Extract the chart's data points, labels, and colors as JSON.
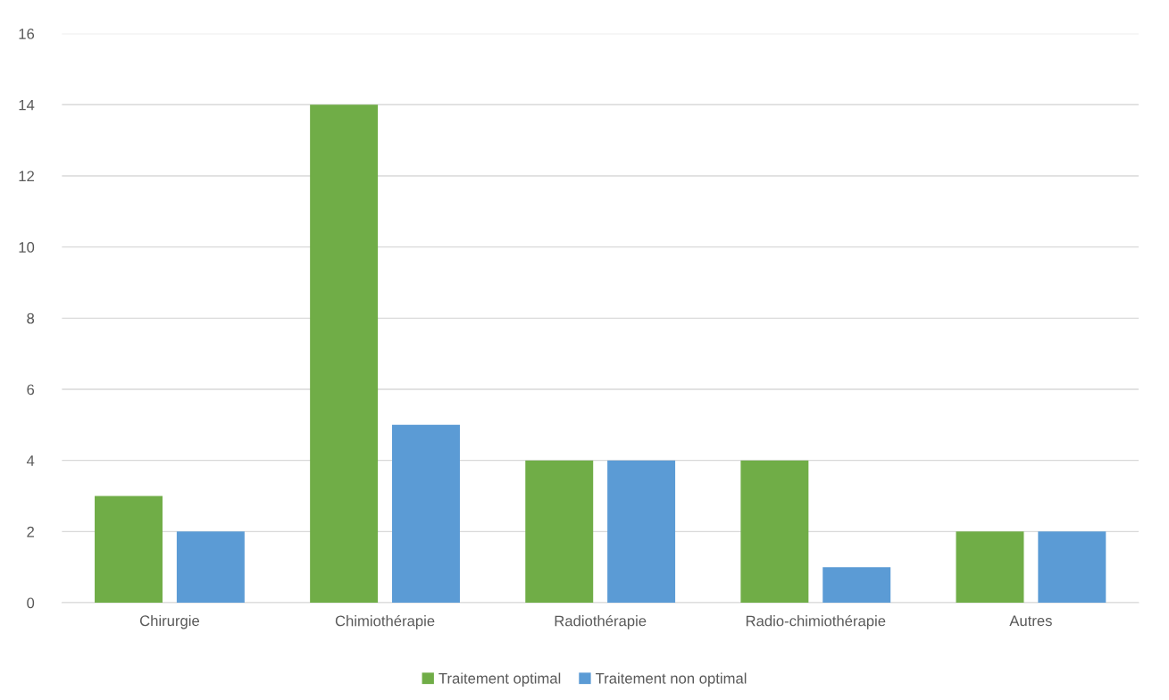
{
  "chart_data": {
    "type": "bar",
    "categories": [
      "Chirurgie",
      "Chimiothérapie",
      "Radiothérapie",
      "Radio-chimiothérapie",
      "Autres"
    ],
    "series": [
      {
        "name": "Traitement optimal",
        "color": "#70ad47",
        "values": [
          3,
          14,
          4,
          4,
          2
        ]
      },
      {
        "name": "Traitement non optimal",
        "color": "#5b9bd5",
        "values": [
          2,
          5,
          4,
          1,
          2
        ]
      }
    ],
    "ylim": [
      0,
      16
    ],
    "yticks": [
      0,
      2,
      4,
      6,
      8,
      10,
      12,
      14,
      16
    ],
    "grid": "y",
    "legend": "bottom"
  }
}
